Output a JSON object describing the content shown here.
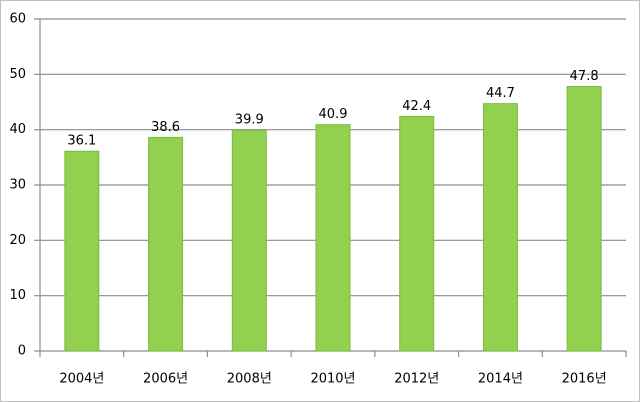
{
  "chart_data": {
    "type": "bar",
    "categories": [
      "2004년",
      "2006년",
      "2008년",
      "2010년",
      "2012년",
      "2014년",
      "2016년"
    ],
    "values": [
      36.1,
      38.6,
      39.9,
      40.9,
      42.4,
      44.7,
      47.8
    ],
    "color": "#92d050",
    "ylim": [
      0,
      60
    ],
    "yticks": [
      0,
      10,
      20,
      30,
      40,
      50,
      60
    ],
    "grid": true
  }
}
